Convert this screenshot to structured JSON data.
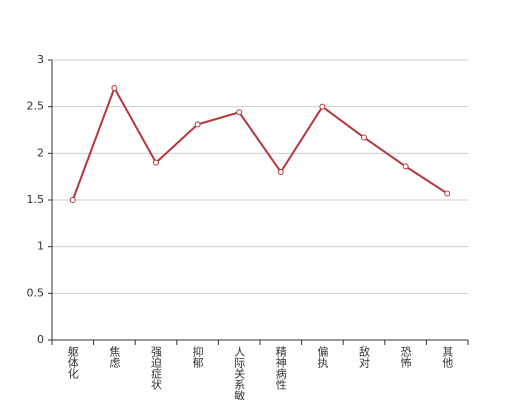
{
  "chart_data": {
    "type": "line",
    "categories": [
      "躯体化",
      "焦虑",
      "强迫症状",
      "抑郁",
      "人际关系敏感",
      "精神病性",
      "偏执",
      "敌对",
      "恐怖",
      "其他"
    ],
    "series": [
      {
        "color": "#b5373a",
        "values": [
          1.5,
          2.7,
          1.9,
          2.31,
          2.44,
          1.8,
          2.5,
          2.17,
          1.86,
          1.57
        ]
      }
    ],
    "ylim": [
      0,
      3
    ],
    "yticks": [
      0,
      0.5,
      1,
      1.5,
      2,
      2.5,
      3
    ],
    "grid": true
  }
}
